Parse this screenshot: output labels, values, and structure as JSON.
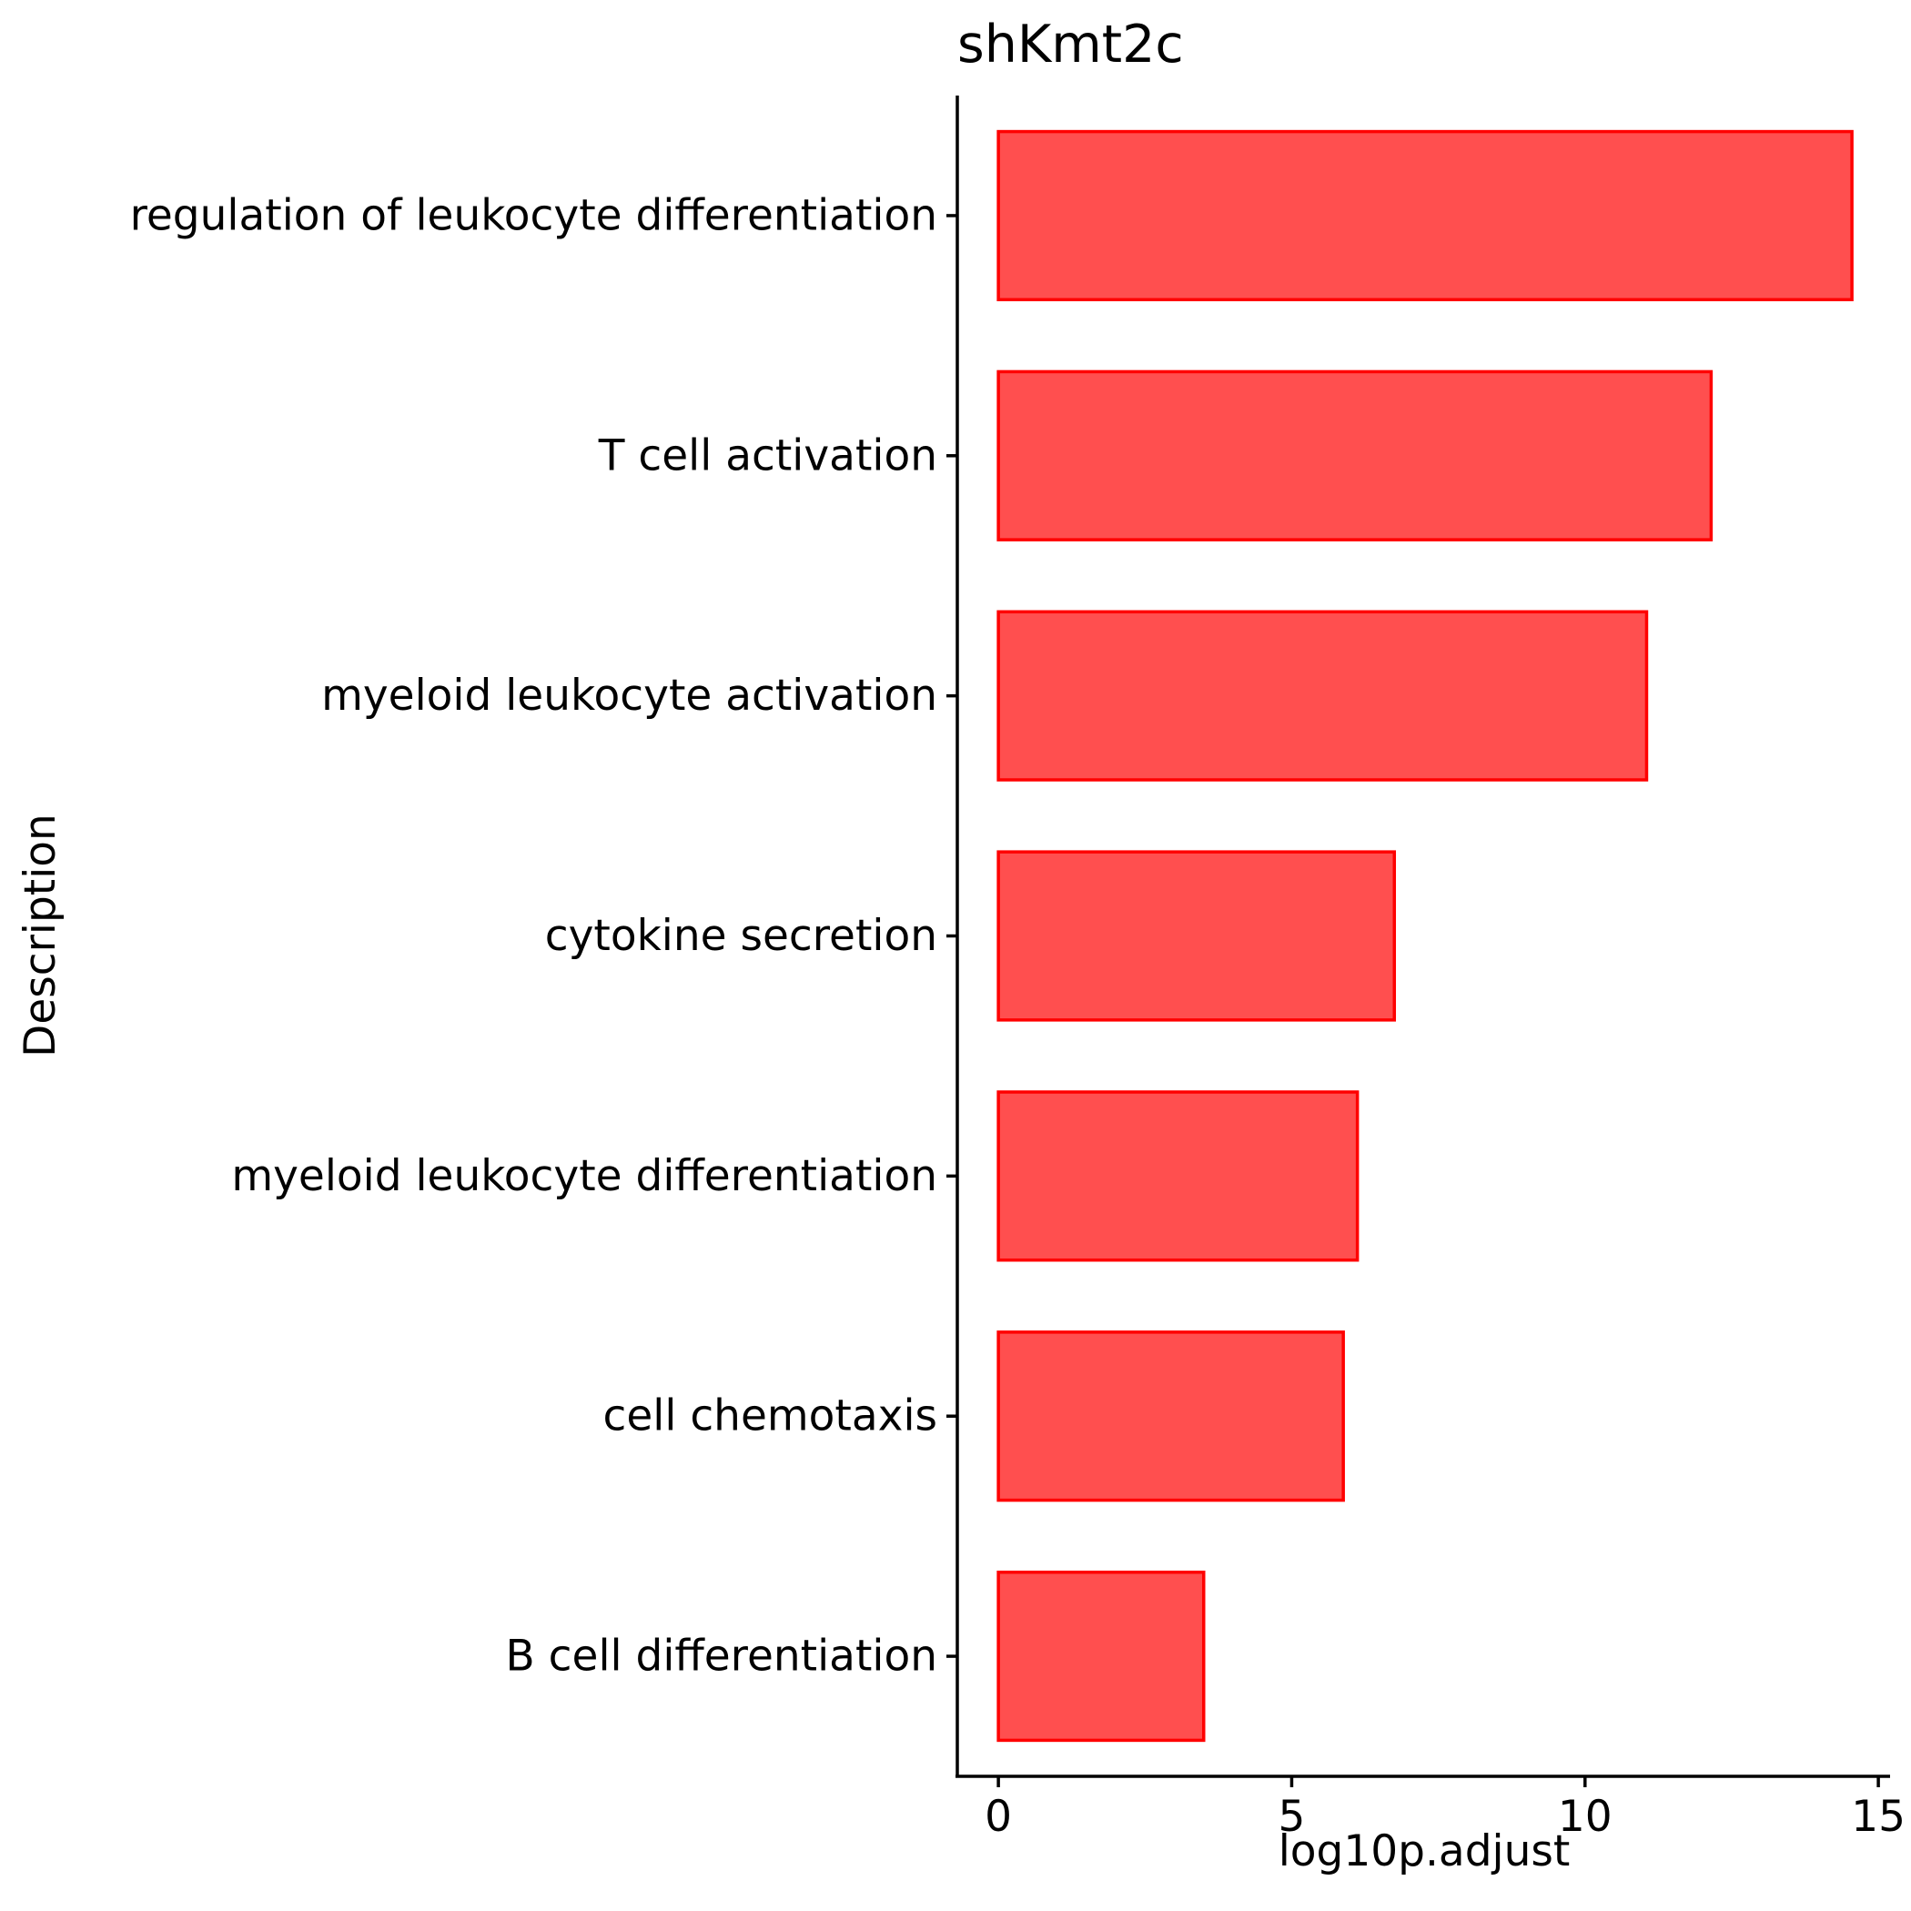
{
  "chart_data": {
    "type": "bar",
    "orientation": "horizontal",
    "title": "shKmt2c",
    "xlabel": "log10p.adjust",
    "ylabel": "Description",
    "categories": [
      "regulation of leukocyte differentiation",
      "T cell activation",
      "myeloid leukocyte activation",
      "cytokine secretion",
      "myeloid leukocyte differentiation",
      "cell chemotaxis",
      "B cell differentiation"
    ],
    "values": [
      14.55,
      12.15,
      11.05,
      6.75,
      6.12,
      5.88,
      3.5
    ],
    "xlim": [
      -0.7,
      15.2
    ],
    "xticks": [
      0,
      5,
      10,
      15
    ],
    "xtick_labels": [
      "0",
      "5",
      "10",
      "15"
    ],
    "grid": false,
    "legend": "none",
    "bar_fill": "#ff4f4f",
    "bar_stroke": "#ff0000"
  }
}
